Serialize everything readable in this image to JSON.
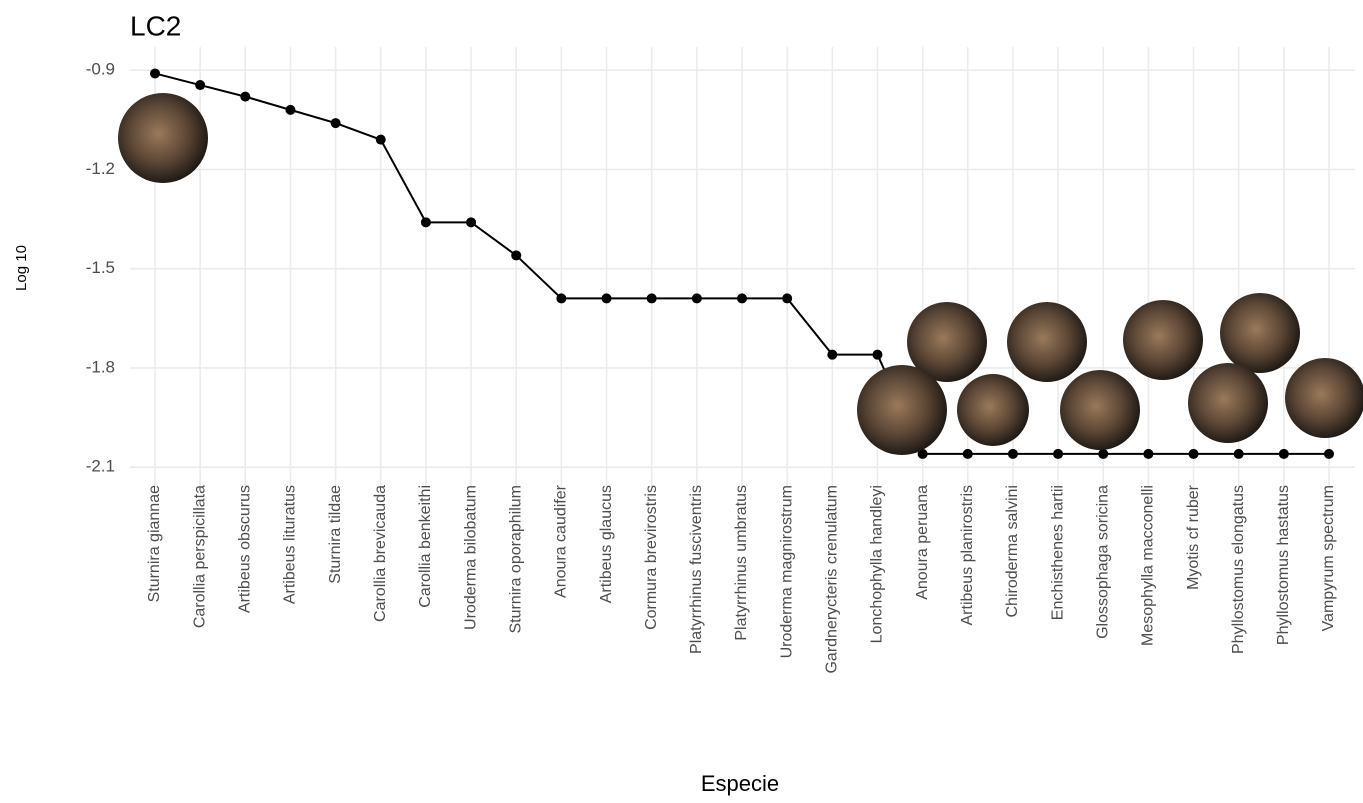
{
  "chart_data": {
    "type": "line",
    "title": "LC2",
    "x_label": "Especie",
    "y_label": "Log 10",
    "categories": [
      "Sturnira giannae",
      "Carollia perspicillata",
      "Artibeus obscurus",
      "Artibeus lituratus",
      "Sturnira tildae",
      "Carollia brevicauda",
      "Carollia benkeithi",
      "Uroderma bilobatum",
      "Sturnira oporaphilum",
      "Anoura caudifer",
      "Artibeus glaucus",
      "Cormura brevirostris",
      "Platyrrhinus fusciventris",
      "Platyrrhinus umbratus",
      "Uroderma magnirostrum",
      "Gardnerycteris crenulatum",
      "Lonchophylla handleyi",
      "Anoura peruana",
      "Artibeus planirostris",
      "Chiroderma salvini",
      "Enchisthenes hartii",
      "Glossophaga soricina",
      "Mesophylla macconelli",
      "Myotis cf ruber",
      "Phyllostomus elongatus",
      "Phyllostomus hastatus",
      "Vampyrum spectrum"
    ],
    "values": [
      -0.91,
      -0.945,
      -0.98,
      -1.02,
      -1.06,
      -1.11,
      -1.36,
      -1.36,
      -1.46,
      -1.59,
      -1.59,
      -1.59,
      -1.59,
      -1.59,
      -1.59,
      -1.76,
      -1.76,
      -2.06,
      -2.06,
      -2.06,
      -2.06,
      -2.06,
      -2.06,
      -2.06,
      -2.06,
      -2.06,
      -2.06
    ],
    "color": "#000000",
    "ylim": [
      -2.16,
      -0.83
    ],
    "yticks": [
      -2.1,
      -1.8,
      -1.5,
      -1.2,
      -0.9
    ],
    "grid": true
  }
}
